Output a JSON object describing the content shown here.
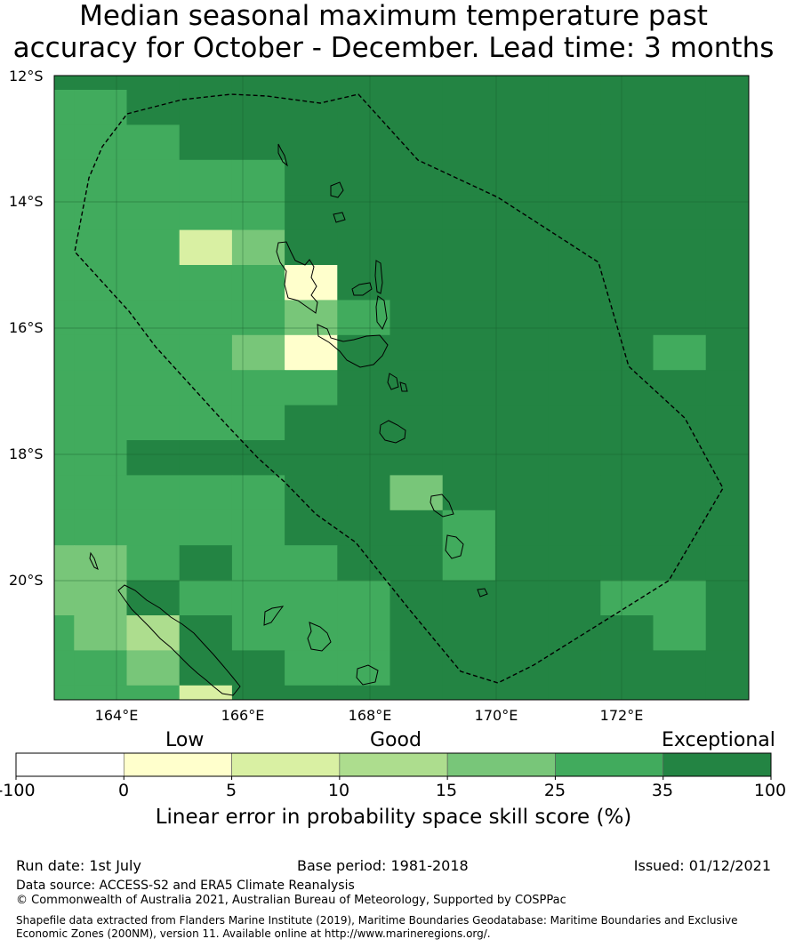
{
  "title_line1": "Median seasonal maximum temperature past",
  "title_line2": "accuracy for October - December. Lead time: 3 months",
  "lat_labels": [
    "12°S",
    "14°S",
    "16°S",
    "18°S",
    "20°S"
  ],
  "lon_labels": [
    "164°E",
    "166°E",
    "168°E",
    "170°E",
    "172°E"
  ],
  "categories": [
    "Low",
    "Good",
    "Exceptional"
  ],
  "colorbar": {
    "ticks": [
      "-100",
      "0",
      "5",
      "10",
      "15",
      "25",
      "35",
      "100"
    ],
    "colors": [
      "#ffffff",
      "#ffffcc",
      "#d9f0a3",
      "#addd8e",
      "#78c679",
      "#41ab5d",
      "#238443"
    ],
    "label": "Linear error in probability space skill score (%)"
  },
  "footer": {
    "run_date": "Run date: 1st July",
    "base_period": "Base period: 1981-2018",
    "issued": "Issued: 01/12/2021",
    "data_source": "Data source: ACCESS-S2 and ERA5 Climate Reanalysis",
    "copyright": "© Commonwealth of Australia 2021, Australian Bureau of Meteorology, Supported by COSPPac",
    "shapefile_line1": "Shapefile data extracted from Flanders Marine Institute (2019), Maritime Boundaries Geodatabase: Maritime Boundaries and Exclusive",
    "shapefile_line2": "Economic Zones (200NM), version 11. Available online at http://www.marineregions.org/."
  },
  "grid_cells": [
    [
      6,
      6,
      6,
      6,
      6,
      6,
      6,
      6,
      6,
      6,
      6,
      6,
      6,
      6
    ],
    [
      5,
      5,
      6,
      6,
      6,
      6,
      6,
      6,
      6,
      6,
      6,
      6,
      6,
      6
    ],
    [
      5,
      5,
      5,
      6,
      6,
      6,
      6,
      6,
      6,
      6,
      6,
      6,
      6,
      6
    ],
    [
      5,
      5,
      5,
      5,
      5,
      6,
      6,
      6,
      6,
      6,
      6,
      6,
      6,
      6
    ],
    [
      5,
      5,
      5,
      5,
      5,
      6,
      6,
      6,
      6,
      6,
      6,
      6,
      6,
      6
    ],
    [
      5,
      5,
      5,
      2,
      4,
      6,
      6,
      6,
      6,
      6,
      6,
      6,
      6,
      6
    ],
    [
      5,
      5,
      5,
      5,
      5,
      1,
      6,
      6,
      6,
      6,
      6,
      6,
      6,
      6
    ],
    [
      5,
      5,
      5,
      5,
      5,
      4,
      5,
      6,
      6,
      6,
      6,
      6,
      6,
      6
    ],
    [
      5,
      5,
      5,
      5,
      4,
      1,
      6,
      6,
      6,
      6,
      6,
      6,
      5,
      6
    ],
    [
      5,
      5,
      5,
      5,
      5,
      5,
      6,
      6,
      6,
      6,
      6,
      6,
      6,
      6
    ],
    [
      5,
      5,
      5,
      5,
      5,
      6,
      6,
      6,
      6,
      6,
      6,
      6,
      6,
      6
    ],
    [
      5,
      5,
      6,
      6,
      6,
      6,
      6,
      6,
      6,
      6,
      6,
      6,
      6,
      6
    ],
    [
      5,
      5,
      5,
      5,
      5,
      6,
      6,
      4,
      6,
      6,
      6,
      6,
      6,
      6
    ],
    [
      5,
      5,
      5,
      5,
      5,
      6,
      6,
      6,
      5,
      6,
      6,
      6,
      6,
      6
    ],
    [
      4,
      4,
      5,
      6,
      5,
      5,
      6,
      6,
      5,
      6,
      6,
      6,
      6,
      6
    ],
    [
      4,
      4,
      6,
      5,
      5,
      5,
      5,
      6,
      6,
      6,
      6,
      5,
      5,
      6
    ],
    [
      5,
      4,
      3,
      6,
      5,
      5,
      5,
      6,
      6,
      6,
      6,
      6,
      5,
      6
    ],
    [
      5,
      5,
      4,
      6,
      6,
      5,
      5,
      6,
      6,
      6,
      6,
      6,
      6,
      6
    ],
    [
      5,
      5,
      5,
      2,
      6,
      6,
      6,
      6,
      6,
      6,
      6,
      6,
      6,
      6
    ]
  ]
}
